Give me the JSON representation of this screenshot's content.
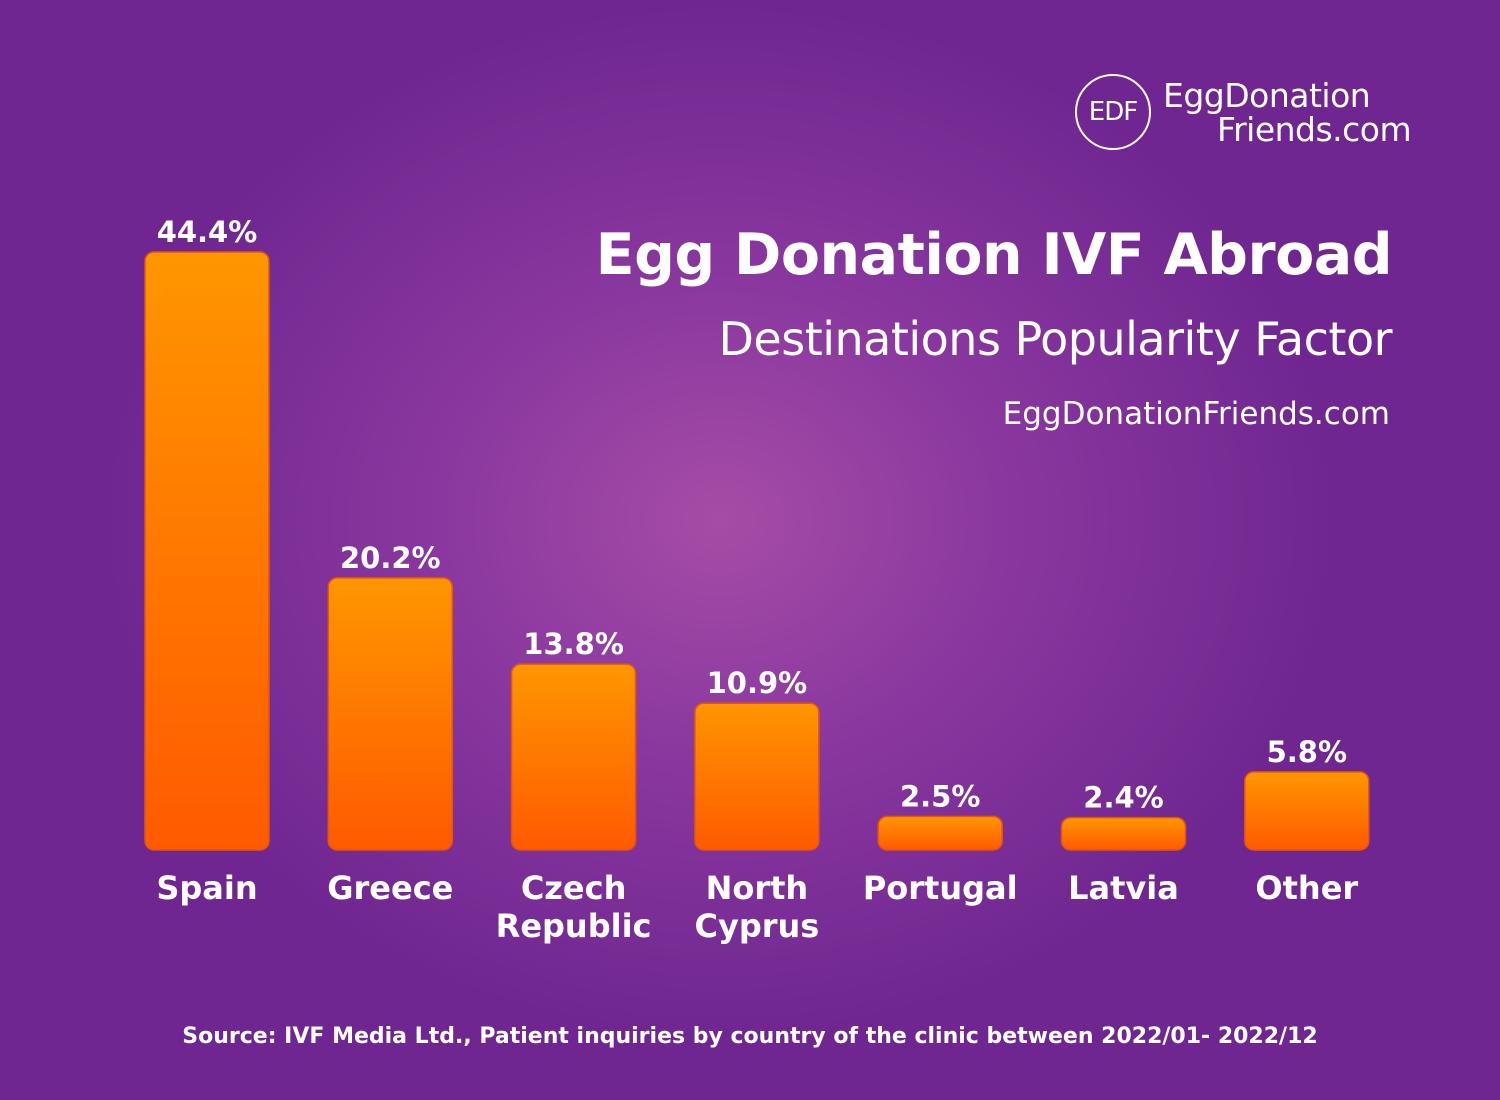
{
  "header": {
    "logo_mark": "EDF",
    "logo_line1": "EggDonation",
    "logo_line2": "Friends.com",
    "title": "Egg Donation IVF Abroad",
    "subtitle": "Destinations Popularity Factor",
    "website": "EggDonationFriends.com"
  },
  "footer": {
    "source": "Source: IVF Media Ltd., Patient inquiries by country of the clinic between 2022/01- 2022/12"
  },
  "colors": {
    "bar_top": "#ff9600",
    "bar_bottom": "#ff5a00",
    "text": "#ffffff"
  },
  "chart_data": {
    "type": "bar",
    "title": "Egg Donation IVF Abroad",
    "subtitle": "Destinations Popularity Factor",
    "xlabel": "",
    "ylabel": "",
    "categories": [
      "Spain",
      "Greece",
      "Czech Republic",
      "North Cyprus",
      "Portugal",
      "Latvia",
      "Other"
    ],
    "category_lines": [
      [
        "Spain"
      ],
      [
        "Greece"
      ],
      [
        "Czech",
        "Republic"
      ],
      [
        "North",
        "Cyprus"
      ],
      [
        "Portugal"
      ],
      [
        "Latvia"
      ],
      [
        "Other"
      ]
    ],
    "values": [
      44.4,
      20.2,
      13.8,
      10.9,
      2.5,
      2.4,
      5.8
    ],
    "value_labels": [
      "44.4%",
      "20.2%",
      "13.8%",
      "10.9%",
      "2.5%",
      "2.4%",
      "5.8%"
    ],
    "unit": "%",
    "ylim": [
      0,
      44.4
    ],
    "grid": false,
    "legend": "none"
  }
}
